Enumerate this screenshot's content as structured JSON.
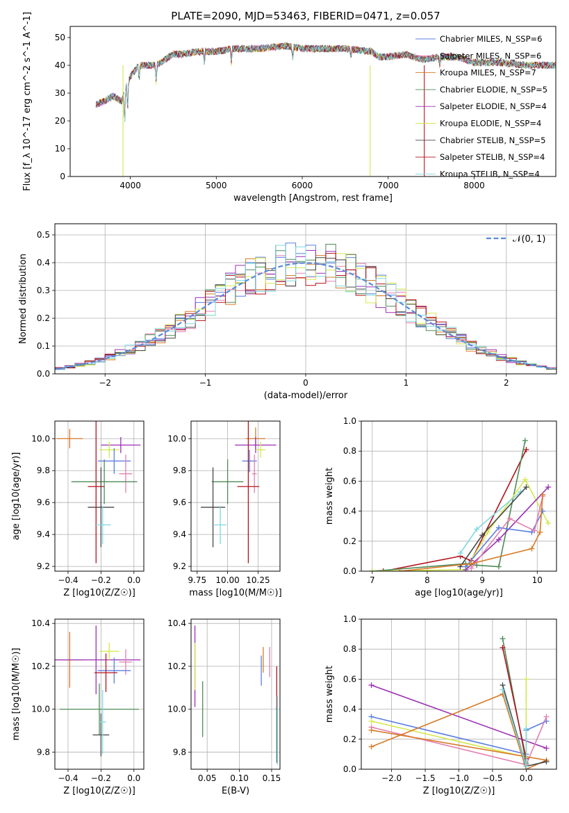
{
  "colors": {
    "Chabrier MILES": "#5b7ee0",
    "Salpeter MILES": "#e37faf",
    "Kroupa MILES": "#d87a26",
    "Chabrier ELODIE": "#4e8a57",
    "Salpeter ELODIE": "#9b2eb5",
    "Kroupa ELODIE": "#d3e84b",
    "Chabrier STELIB": "#474747",
    "Salpeter STELIB": "#b3121b",
    "Kroupa STELIB": "#7fd8df",
    "gauss": "#5a8ad8"
  },
  "chart_data": [
    {
      "id": "spectrum",
      "type": "line",
      "title": "PLATE=2090, MJD=53463, FIBERID=0471, z=0.057",
      "xlabel": "wavelength [Angstrom, rest frame]",
      "ylabel": "Flux [f_λ 10^-17 erg cm^-2 s^-1 A^-1]",
      "xlim": [
        3300,
        8950
      ],
      "ylim": [
        0,
        54
      ],
      "xticks": [
        "4000",
        "5000",
        "6000",
        "7000",
        "8000"
      ],
      "yticks": [
        "0",
        "10",
        "20",
        "30",
        "40",
        "50"
      ],
      "continuum": [
        [
          3600,
          26
        ],
        [
          3700,
          27
        ],
        [
          3800,
          29
        ],
        [
          3900,
          27
        ],
        [
          3950,
          32
        ],
        [
          4000,
          36
        ],
        [
          4100,
          40
        ],
        [
          4200,
          40
        ],
        [
          4300,
          40
        ],
        [
          4400,
          42
        ],
        [
          4500,
          44
        ],
        [
          4600,
          44
        ],
        [
          4800,
          45
        ],
        [
          5000,
          45
        ],
        [
          5200,
          46
        ],
        [
          5500,
          46
        ],
        [
          5800,
          47
        ],
        [
          6000,
          46
        ],
        [
          6200,
          46
        ],
        [
          6500,
          46
        ],
        [
          6800,
          45
        ],
        [
          6900,
          43
        ],
        [
          7000,
          43
        ],
        [
          7200,
          44
        ],
        [
          7400,
          42
        ],
        [
          7600,
          43
        ],
        [
          7800,
          43
        ],
        [
          8000,
          41
        ],
        [
          8300,
          41
        ],
        [
          8600,
          40
        ],
        [
          8950,
          40
        ]
      ],
      "legend": [
        {
          "label": "Chabrier MILES, N_SSP=6"
        },
        {
          "label": "Salpeter MILES, N_SSP=6"
        },
        {
          "label": "Kroupa MILES, N_SSP=7"
        },
        {
          "label": "Chabrier ELODIE, N_SSP=5"
        },
        {
          "label": "Salpeter ELODIE, N_SSP=4"
        },
        {
          "label": "Kroupa ELODIE, N_SSP=4"
        },
        {
          "label": "Chabrier STELIB, N_SSP=5"
        },
        {
          "label": "Salpeter STELIB, N_SSP=4"
        },
        {
          "label": "Kroupa STELIB, N_SSP=4"
        }
      ]
    },
    {
      "id": "residuals",
      "type": "bar",
      "xlabel": "(data-model)/error",
      "ylabel": "Normed distribution",
      "xlim": [
        -2.5,
        2.5
      ],
      "ylim": [
        0,
        0.54
      ],
      "xticks": [
        "−2",
        "−1",
        "0",
        "1",
        "2"
      ],
      "yticks": [
        "0.0",
        "0.1",
        "0.2",
        "0.3",
        "0.4",
        "0.5"
      ],
      "legend_label": "𝒩(0, 1)",
      "bin_width": 0.1
    },
    {
      "id": "age-vs-z",
      "type": "scatter",
      "xlabel": "Z [log10(Z/Z☉)]",
      "ylabel": "age [log10(age/yr)]",
      "xlim": [
        -0.48,
        0.06
      ],
      "ylim": [
        9.17,
        10.11
      ],
      "xticks": [
        "−0.4",
        "−0.2",
        "0.0"
      ],
      "yticks": [
        "9.2",
        "9.4",
        "9.6",
        "9.8",
        "10.0"
      ],
      "points": [
        {
          "series": "Kroupa MILES",
          "x": -0.39,
          "y": 10.0,
          "xerr": 0.08,
          "yerr": 0.06
        },
        {
          "series": "Salpeter ELODIE",
          "x": -0.08,
          "y": 9.96,
          "xerr": 0.12,
          "yerr": 0.05
        },
        {
          "series": "Kroupa ELODIE",
          "x": -0.15,
          "y": 9.93,
          "xerr": 0.06,
          "yerr": 0.05
        },
        {
          "series": "Chabrier MILES",
          "x": -0.12,
          "y": 9.86,
          "xerr": 0.1,
          "yerr": 0.08
        },
        {
          "series": "Salpeter MILES",
          "x": -0.05,
          "y": 9.78,
          "xerr": 0.04,
          "yerr": 0.12
        },
        {
          "series": "Chabrier ELODIE",
          "x": -0.18,
          "y": 9.73,
          "xerr": 0.2,
          "yerr": 0.14
        },
        {
          "series": "Salpeter STELIB",
          "x": -0.23,
          "y": 9.7,
          "xerr": 0.05,
          "yerr": 0.48
        },
        {
          "series": "Chabrier STELIB",
          "x": -0.2,
          "y": 9.57,
          "xerr": 0.08,
          "yerr": 0.25
        },
        {
          "series": "Kroupa STELIB",
          "x": -0.19,
          "y": 9.46,
          "xerr": 0.05,
          "yerr": 0.12
        }
      ]
    },
    {
      "id": "age-vs-mass",
      "type": "scatter",
      "xlabel": "mass [log10(M/M☉)]",
      "xlim": [
        9.7,
        10.43
      ],
      "ylim": [
        9.17,
        10.11
      ],
      "xticks": [
        "9.75",
        "10.00",
        "10.25"
      ],
      "yticks": [
        "9.2",
        "9.4",
        "9.6",
        "9.8",
        "10.0"
      ],
      "points": [
        {
          "series": "Kroupa MILES",
          "x": 10.23,
          "y": 10.0,
          "xerr": 0.08,
          "yerr": 0.07
        },
        {
          "series": "Salpeter ELODIE",
          "x": 10.23,
          "y": 9.96,
          "xerr": 0.17,
          "yerr": 0.05
        },
        {
          "series": "Kroupa ELODIE",
          "x": 10.27,
          "y": 9.93,
          "xerr": 0.04,
          "yerr": 0.05
        },
        {
          "series": "Chabrier MILES",
          "x": 10.18,
          "y": 9.86,
          "xerr": 0.06,
          "yerr": 0.07
        },
        {
          "series": "Salpeter MILES",
          "x": 10.22,
          "y": 9.78,
          "xerr": 0.02,
          "yerr": 0.12
        },
        {
          "series": "Chabrier ELODIE",
          "x": 10.0,
          "y": 9.73,
          "xerr": 0.13,
          "yerr": 0.14
        },
        {
          "series": "Salpeter STELIB",
          "x": 10.17,
          "y": 9.7,
          "xerr": 0.09,
          "yerr": 0.48
        },
        {
          "series": "Chabrier STELIB",
          "x": 9.88,
          "y": 9.57,
          "xerr": 0.1,
          "yerr": 0.25
        },
        {
          "series": "Kroupa STELIB",
          "x": 9.94,
          "y": 9.46,
          "xerr": 0.05,
          "yerr": 0.12
        }
      ]
    },
    {
      "id": "massweight-vs-age",
      "type": "line",
      "xlabel": "age [log10(age/yr)]",
      "ylabel": "mass weight",
      "xlim": [
        6.8,
        10.35
      ],
      "ylim": [
        0,
        1
      ],
      "xticks": [
        "7",
        "8",
        "9",
        "10"
      ],
      "yticks": [
        "0.0",
        "0.2",
        "0.4",
        "0.6",
        "0.8",
        "1.0"
      ],
      "series": [
        {
          "name": "Salpeter STELIB",
          "points": [
            [
              7.2,
              0
            ],
            [
              8.6,
              0.1
            ],
            [
              8.8,
              0.07
            ],
            [
              9.8,
              0.81
            ]
          ]
        },
        {
          "name": "Chabrier ELODIE",
          "points": [
            [
              7.0,
              0
            ],
            [
              8.7,
              0.05
            ],
            [
              8.9,
              0.04
            ],
            [
              9.3,
              0.03
            ],
            [
              9.78,
              0.87
            ]
          ]
        },
        {
          "name": "Kroupa ELODIE",
          "points": [
            [
              7.0,
              0
            ],
            [
              8.7,
              0.01
            ],
            [
              9.1,
              0.26
            ],
            [
              9.78,
              0.61
            ],
            [
              10.2,
              0.32
            ]
          ]
        },
        {
          "name": "Kroupa STELIB",
          "points": [
            [
              8.6,
              0.12
            ],
            [
              8.9,
              0.28
            ],
            [
              9.7,
              0.53
            ]
          ]
        },
        {
          "name": "Chabrier STELIB",
          "points": [
            [
              8.6,
              0.03
            ],
            [
              9.0,
              0.24
            ],
            [
              9.8,
              0.56
            ]
          ]
        },
        {
          "name": "Salpeter ELODIE",
          "points": [
            [
              8.7,
              0.01
            ],
            [
              9.3,
              0.21
            ],
            [
              10.2,
              0.56
            ]
          ]
        },
        {
          "name": "Chabrier MILES",
          "points": [
            [
              8.7,
              0.03
            ],
            [
              9.3,
              0.29
            ],
            [
              9.9,
              0.26
            ],
            [
              10.1,
              0.4
            ]
          ]
        },
        {
          "name": "Salpeter MILES",
          "points": [
            [
              8.8,
              0.02
            ],
            [
              9.5,
              0.35
            ],
            [
              9.95,
              0.27
            ],
            [
              10.1,
              0.5
            ]
          ]
        },
        {
          "name": "Kroupa MILES",
          "points": [
            [
              7.5,
              0
            ],
            [
              8.8,
              0.05
            ],
            [
              9.9,
              0.15
            ],
            [
              10.05,
              0.26
            ],
            [
              10.1,
              0.51
            ]
          ]
        }
      ]
    },
    {
      "id": "mass-vs-z",
      "type": "scatter",
      "xlabel": "Z [log10(Z/Z☉)]",
      "ylabel": "mass [log10(M/M☉)]",
      "xlim": [
        -0.48,
        0.06
      ],
      "ylim": [
        9.72,
        10.42
      ],
      "xticks": [
        "−0.4",
        "−0.2",
        "0.0"
      ],
      "yticks": [
        "9.8",
        "10.0",
        "10.2",
        "10.4"
      ],
      "points": [
        {
          "series": "Kroupa MILES",
          "x": -0.39,
          "y": 10.23,
          "xerr": 0.08,
          "yerr": 0.13
        },
        {
          "series": "Salpeter ELODIE",
          "x": -0.23,
          "y": 10.23,
          "xerr": 0.27,
          "yerr": 0.16
        },
        {
          "series": "Kroupa ELODIE",
          "x": -0.15,
          "y": 10.27,
          "xerr": 0.06,
          "yerr": 0.04
        },
        {
          "series": "Salpeter MILES",
          "x": -0.05,
          "y": 10.22,
          "xerr": 0.04,
          "yerr": 0.06
        },
        {
          "series": "Chabrier MILES",
          "x": -0.12,
          "y": 10.18,
          "xerr": 0.1,
          "yerr": 0.06
        },
        {
          "series": "Salpeter STELIB",
          "x": -0.17,
          "y": 10.17,
          "xerr": 0.07,
          "yerr": 0.09
        },
        {
          "series": "Chabrier ELODIE",
          "x": -0.21,
          "y": 10.0,
          "xerr": 0.24,
          "yerr": 0.12
        },
        {
          "series": "Chabrier STELIB",
          "x": -0.2,
          "y": 9.88,
          "xerr": 0.05,
          "yerr": 0.1
        },
        {
          "series": "Kroupa STELIB",
          "x": -0.19,
          "y": 9.94,
          "xerr": 0.02,
          "yerr": 0.15
        }
      ]
    },
    {
      "id": "mass-vs-ebv",
      "type": "scatter",
      "xlabel": "E(B-V)",
      "xlim": [
        0.025,
        0.163
      ],
      "ylim": [
        9.72,
        10.42
      ],
      "xticks": [
        "0.05",
        "0.10",
        "0.15"
      ],
      "yticks": [
        "9.8",
        "10.0",
        "10.2",
        "10.4"
      ],
      "points": [
        {
          "series": "Salpeter ELODIE",
          "x": 0.031,
          "y": 10.2,
          "yerr": 0.19
        },
        {
          "series": "Kroupa ELODIE",
          "x": 0.031,
          "y": 10.2,
          "yerr": 0.11
        },
        {
          "series": "Chabrier ELODIE",
          "x": 0.043,
          "y": 10.0,
          "yerr": 0.13
        },
        {
          "series": "Chabrier MILES",
          "x": 0.134,
          "y": 10.18,
          "yerr": 0.07
        },
        {
          "series": "Kroupa MILES",
          "x": 0.137,
          "y": 10.23,
          "yerr": 0.06
        },
        {
          "series": "Salpeter MILES",
          "x": 0.147,
          "y": 10.22,
          "yerr": 0.07
        },
        {
          "series": "Salpeter STELIB",
          "x": 0.158,
          "y": 10.1,
          "yerr": 0.1
        },
        {
          "series": "Chabrier STELIB",
          "x": 0.158,
          "y": 9.88,
          "yerr": 0.13
        },
        {
          "series": "Kroupa STELIB",
          "x": 0.159,
          "y": 9.9,
          "yerr": 0.16
        }
      ]
    },
    {
      "id": "massweight-vs-z",
      "type": "line",
      "xlabel": "Z [log10(Z/Z☉)]",
      "ylabel": "mass weight",
      "xlim": [
        -2.45,
        0.45
      ],
      "ylim": [
        0,
        1
      ],
      "xticks": [
        "−2.0",
        "−1.5",
        "−1.0",
        "−0.5",
        "0.0"
      ],
      "yticks": [
        "0.0",
        "0.2",
        "0.4",
        "0.6",
        "0.8",
        "1.0"
      ],
      "series": [
        {
          "name": "Salpeter ELODIE",
          "points": [
            [
              -2.3,
              0.56
            ],
            [
              0.3,
              0.14
            ]
          ]
        },
        {
          "name": "Chabrier MILES",
          "points": [
            [
              -2.3,
              0.35
            ],
            [
              0.0,
              0.1
            ],
            [
              0.0,
              0.26
            ],
            [
              0.3,
              0.32
            ]
          ]
        },
        {
          "name": "Kroupa ELODIE",
          "points": [
            [
              -2.3,
              0.32
            ],
            [
              0.0,
              0.08
            ],
            [
              0.0,
              0.6
            ]
          ]
        },
        {
          "name": "Salpeter MILES",
          "points": [
            [
              -2.3,
              0.28
            ],
            [
              0.0,
              0.03
            ],
            [
              0.3,
              0.35
            ]
          ]
        },
        {
          "name": "Kroupa MILES",
          "points": [
            [
              -2.3,
              0.15
            ],
            [
              -0.35,
              0.5
            ],
            [
              0.0,
              0.0
            ],
            [
              0.3,
              0.06
            ],
            [
              -2.3,
              0.26
            ]
          ]
        },
        {
          "name": "Chabrier ELODIE",
          "points": [
            [
              -0.35,
              0.87
            ],
            [
              0.0,
              0.04
            ]
          ]
        },
        {
          "name": "Salpeter STELIB",
          "points": [
            [
              -0.35,
              0.81
            ],
            [
              0.0,
              0.07
            ]
          ]
        },
        {
          "name": "Chabrier STELIB",
          "points": [
            [
              -0.35,
              0.56
            ],
            [
              0.0,
              0.02
            ],
            [
              0.3,
              0.05
            ]
          ]
        },
        {
          "name": "Kroupa STELIB",
          "points": [
            [
              -0.35,
              0.53
            ],
            [
              0.0,
              0.02
            ],
            [
              0.0,
              0.27
            ]
          ]
        }
      ]
    }
  ]
}
